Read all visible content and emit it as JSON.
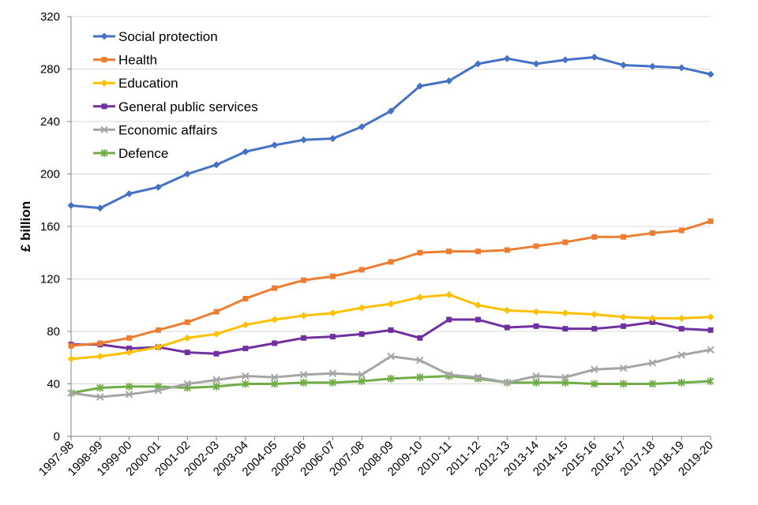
{
  "chart_data": {
    "type": "line",
    "title": "",
    "xlabel": "",
    "ylabel": "£ billion",
    "ylim": [
      0,
      320
    ],
    "yticks": [
      0,
      40,
      80,
      120,
      160,
      200,
      240,
      280,
      320
    ],
    "grid": "horizontal",
    "legend": "top-left",
    "categories": [
      "1997-98",
      "1998-99",
      "1999-00",
      "2000-01",
      "2001-02",
      "2002-03",
      "2003-04",
      "2004-05",
      "2005-06",
      "2006-07",
      "2007-08",
      "2008-09",
      "2009-10",
      "2010-11",
      "2011-12",
      "2012-13",
      "2013-14",
      "2014-15",
      "2015-16",
      "2016-17",
      "2017-18",
      "2018-19",
      "2019-20"
    ],
    "series": [
      {
        "name": "Social protection",
        "color": "#4472C4",
        "marker": "diamond",
        "values": [
          176,
          174,
          185,
          190,
          200,
          207,
          217,
          222,
          226,
          227,
          236,
          248,
          267,
          271,
          284,
          288,
          284,
          287,
          289,
          283,
          282,
          281,
          276
        ]
      },
      {
        "name": "Health",
        "color": "#ED7D31",
        "marker": "square",
        "values": [
          69,
          71,
          75,
          81,
          87,
          95,
          105,
          113,
          119,
          122,
          127,
          133,
          140,
          141,
          141,
          142,
          145,
          148,
          152,
          152,
          155,
          157,
          164
        ]
      },
      {
        "name": "Education",
        "color": "#FFC000",
        "marker": "diamond",
        "values": [
          59,
          61,
          64,
          68,
          75,
          78,
          85,
          89,
          92,
          94,
          98,
          101,
          106,
          108,
          100,
          96,
          95,
          94,
          93,
          91,
          90,
          90,
          91
        ]
      },
      {
        "name": "General public services",
        "color": "#7030A0",
        "marker": "square",
        "values": [
          70,
          70,
          67,
          68,
          64,
          63,
          67,
          71,
          75,
          76,
          78,
          81,
          75,
          89,
          89,
          83,
          84,
          82,
          82,
          84,
          87,
          82,
          81
        ]
      },
      {
        "name": "Economic affairs",
        "color": "#A5A5A5",
        "marker": "x",
        "values": [
          33,
          30,
          32,
          35,
          40,
          43,
          46,
          45,
          47,
          48,
          47,
          61,
          58,
          47,
          45,
          41,
          46,
          45,
          51,
          52,
          56,
          62,
          66
        ]
      },
      {
        "name": "Defence",
        "color": "#70AD47",
        "marker": "star",
        "values": [
          33,
          37,
          38,
          38,
          37,
          38,
          40,
          40,
          41,
          41,
          42,
          44,
          45,
          46,
          44,
          41,
          41,
          41,
          40,
          40,
          40,
          41,
          42
        ]
      }
    ]
  }
}
